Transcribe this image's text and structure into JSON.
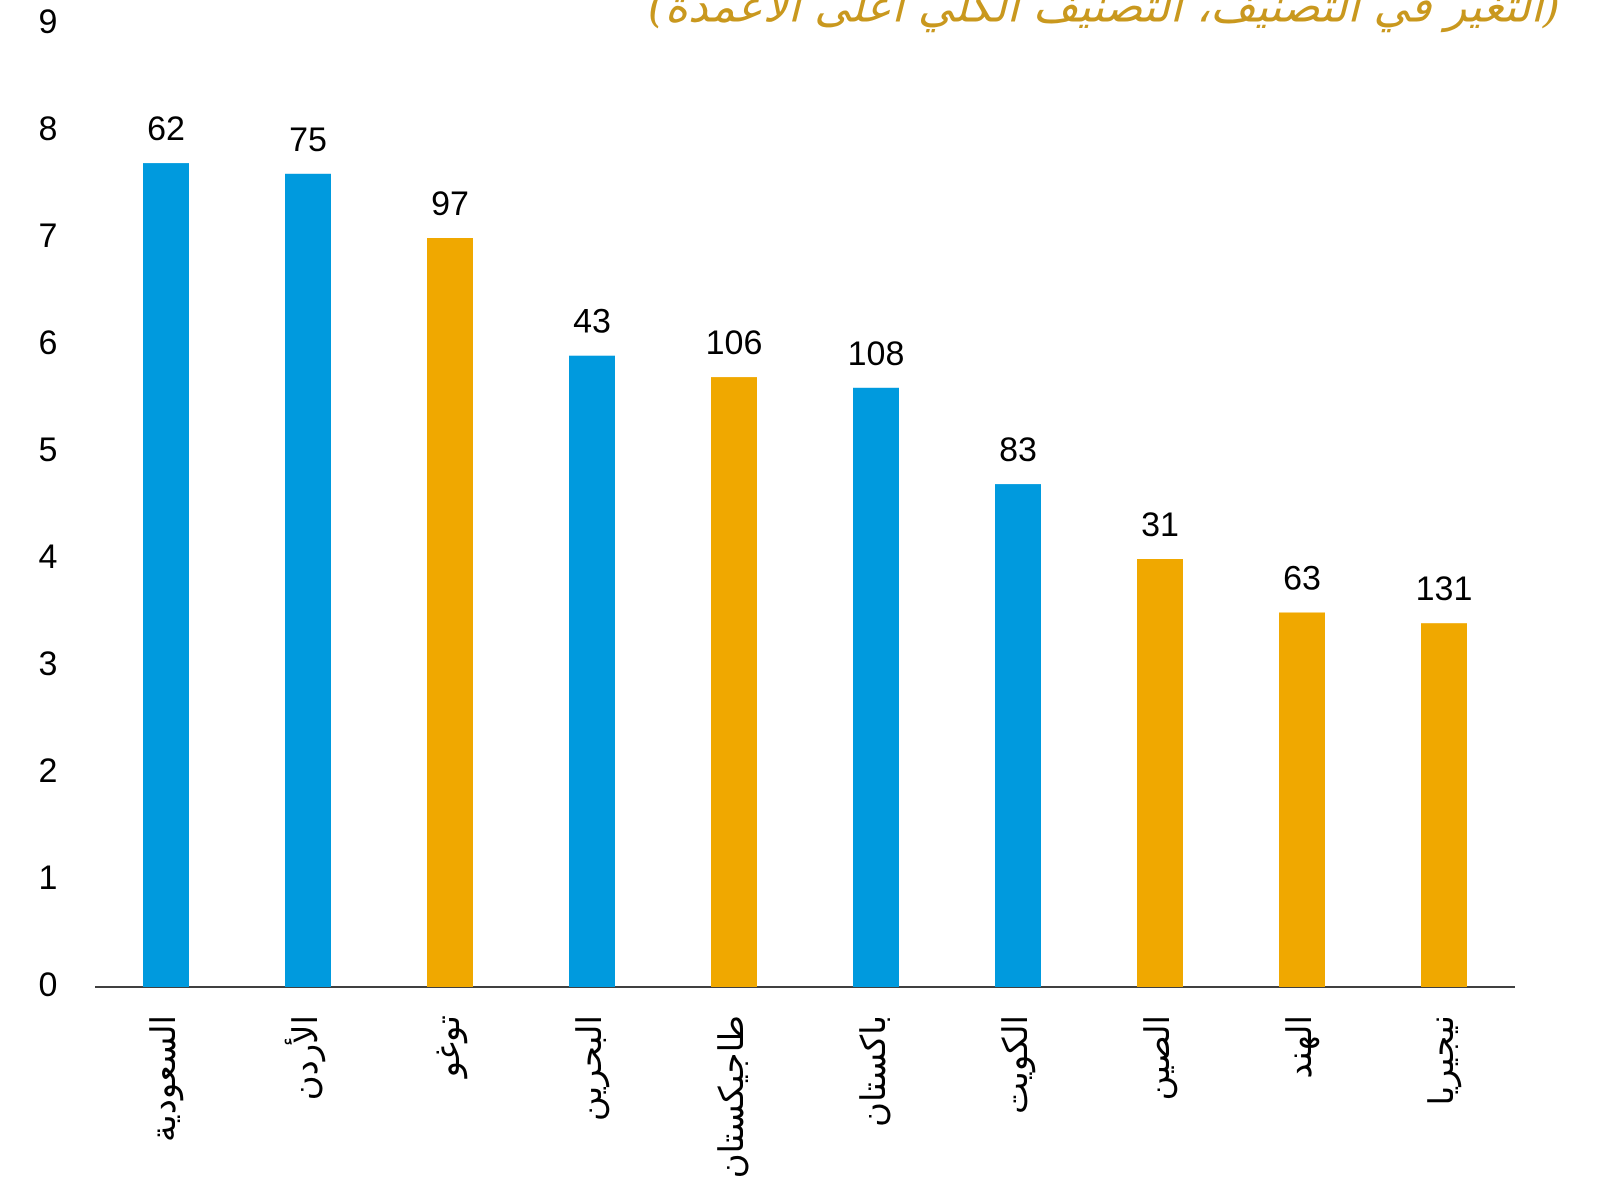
{
  "chart_data": {
    "type": "bar",
    "subtitle": "(التغير في التصنيف، التصنيف الكلي أعلى الأعمدة)",
    "categories": [
      "السعودية",
      "الأردن",
      "توغو",
      "البحرين",
      "طاجيكستان",
      "باكستان",
      "الكويت",
      "الصين",
      "الهند",
      "نيجيريا"
    ],
    "values": [
      7.7,
      7.6,
      7.0,
      5.9,
      5.7,
      5.6,
      4.7,
      4.0,
      3.5,
      3.4
    ],
    "overall_rank": [
      62,
      75,
      97,
      43,
      106,
      108,
      83,
      31,
      63,
      131
    ],
    "colors": [
      "#009ade",
      "#009ade",
      "#f0a800",
      "#009ade",
      "#f0a800",
      "#009ade",
      "#009ade",
      "#f0a800",
      "#f0a800",
      "#f0a800"
    ],
    "ylim": [
      0,
      9
    ],
    "yticks": [
      0,
      1,
      2,
      3,
      4,
      5,
      6,
      7,
      8,
      9
    ],
    "grid": false
  }
}
